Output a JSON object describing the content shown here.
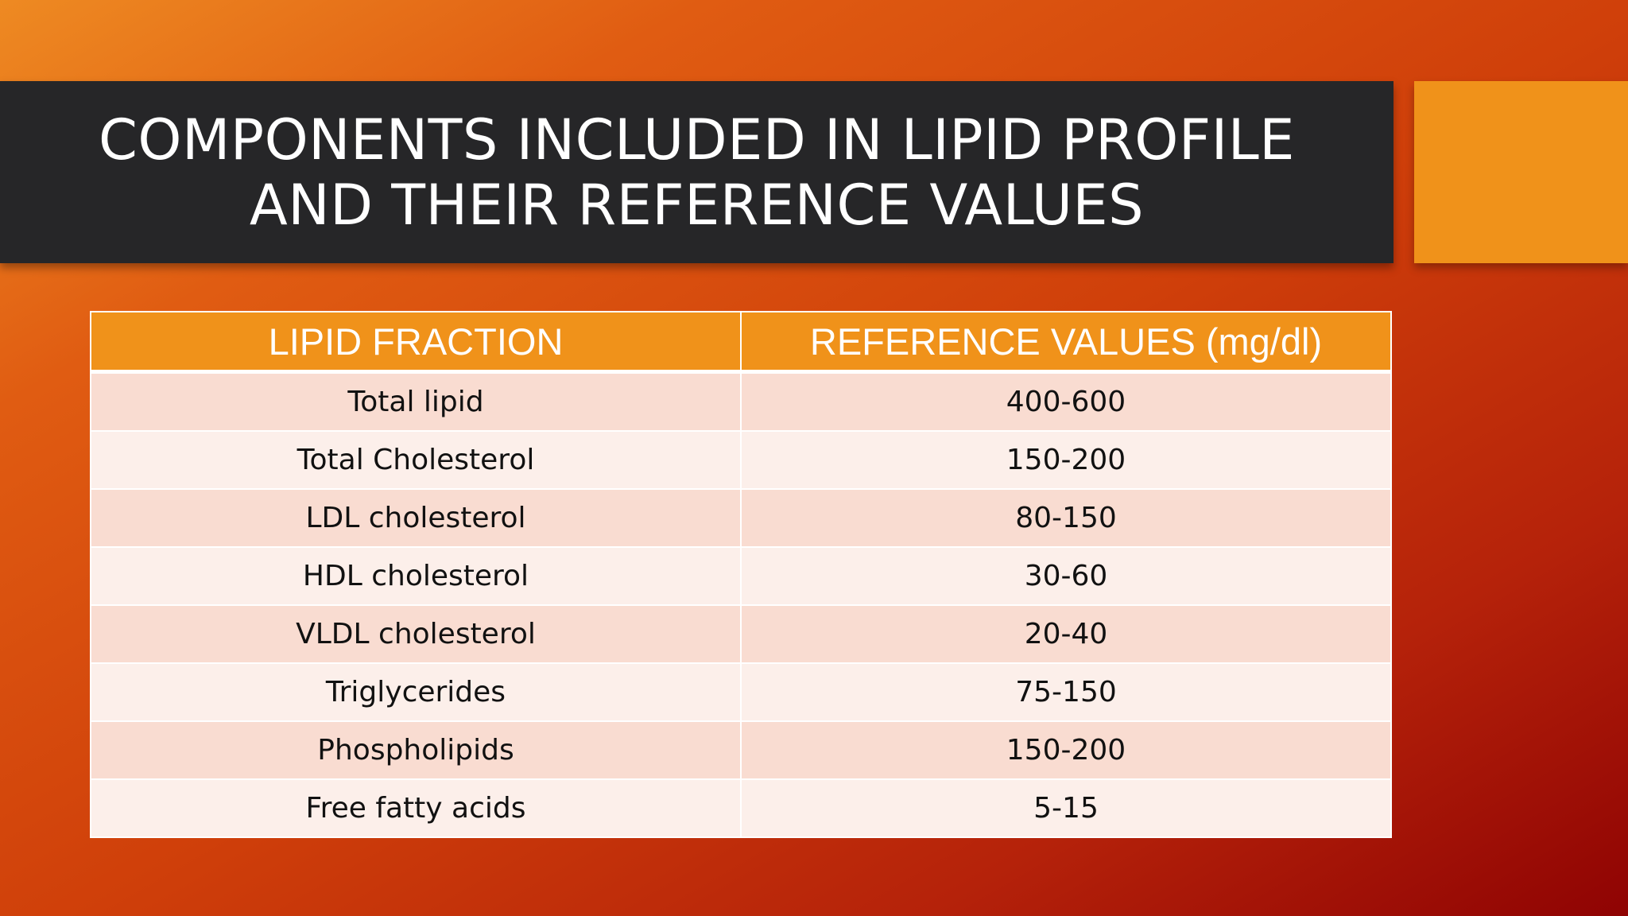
{
  "slide": {
    "title": "COMPONENTS INCLUDED IN LIPID PROFILE\nAND THEIR REFERENCE VALUES"
  },
  "table": {
    "headers": [
      "LIPID FRACTION",
      "REFERENCE VALUES (mg/dl)"
    ],
    "rows": [
      [
        "Total lipid",
        "400-600"
      ],
      [
        "Total Cholesterol",
        "150-200"
      ],
      [
        "LDL cholesterol",
        "80-150"
      ],
      [
        "HDL cholesterol",
        "30-60"
      ],
      [
        "VLDL cholesterol",
        "20-40"
      ],
      [
        "Triglycerides",
        "75-150"
      ],
      [
        "Phospholipids",
        "150-200"
      ],
      [
        "Free fatty acids",
        "5-15"
      ]
    ]
  },
  "colors": {
    "accent": "#f0921a",
    "title_bar": "#262628",
    "row_odd": "#f9dcd1",
    "row_even": "#fcefea"
  }
}
